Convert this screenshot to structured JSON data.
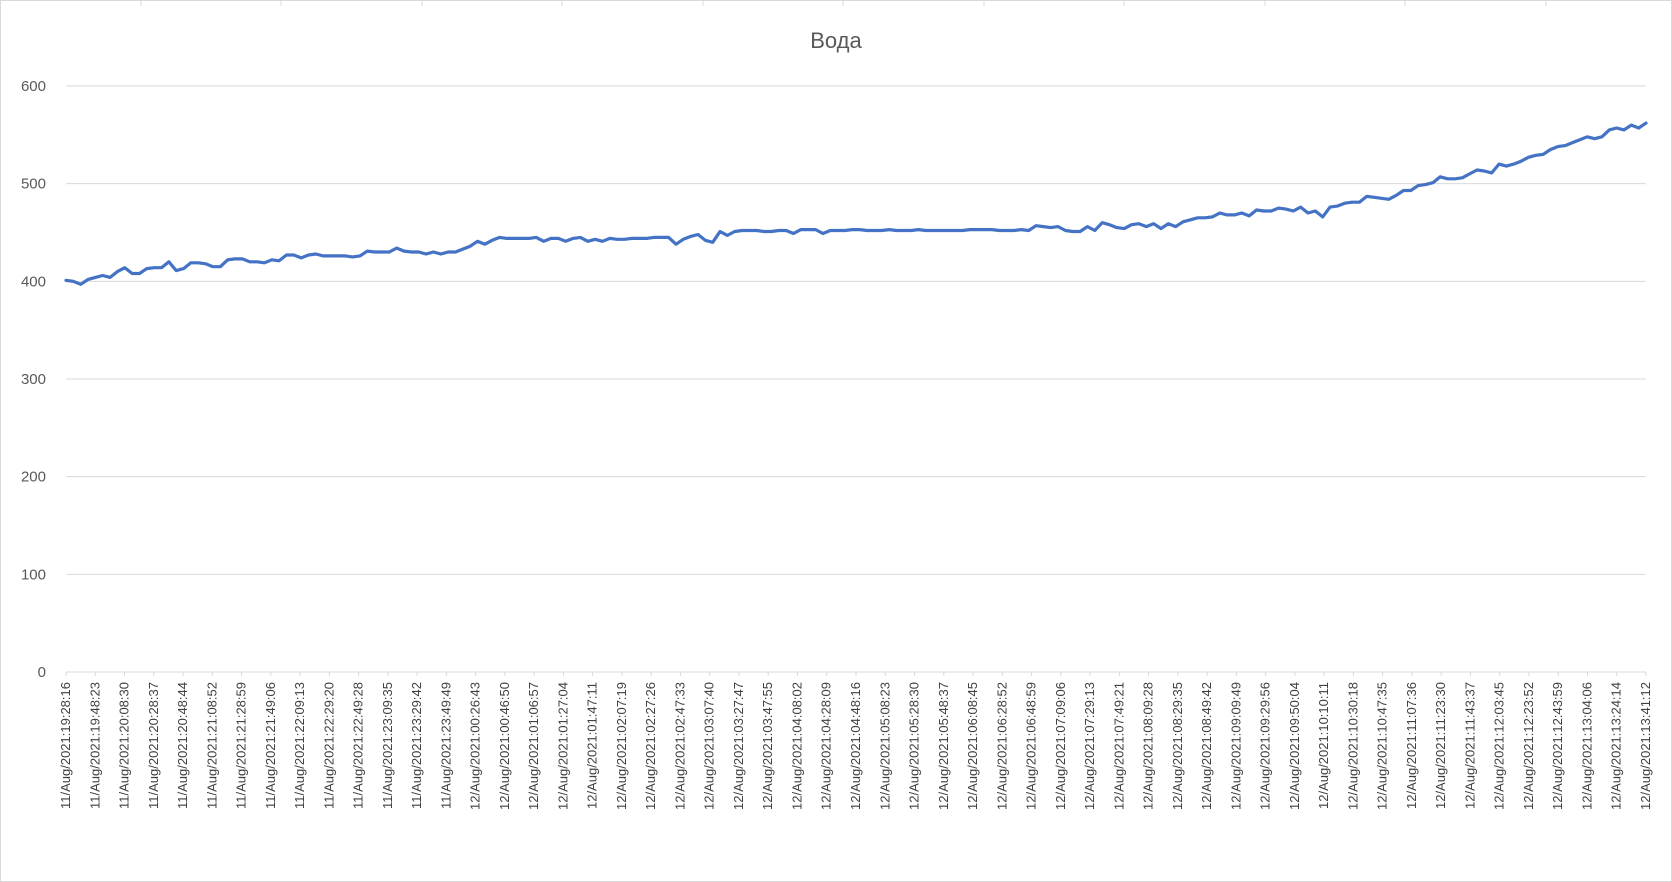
{
  "chart_data": {
    "type": "line",
    "title": "Вода",
    "xlabel": "",
    "ylabel": "",
    "ylim": [
      0,
      600
    ],
    "yticks": [
      "0",
      "100",
      "200",
      "300",
      "400",
      "500",
      "600"
    ],
    "grid": true,
    "legend": "none",
    "colors": {
      "line": "#4472C4",
      "grid": "#d9d9d9",
      "frame": "#d9d9d9",
      "text": "#595959"
    },
    "x_tick_labels": [
      "11/Aug/2021:19:28:16",
      "11/Aug/2021:19:48:23",
      "11/Aug/2021:20:08:30",
      "11/Aug/2021:20:28:37",
      "11/Aug/2021:20:48:44",
      "11/Aug/2021:21:08:52",
      "11/Aug/2021:21:28:59",
      "11/Aug/2021:21:49:06",
      "11/Aug/2021:22:09:13",
      "11/Aug/2021:22:29:20",
      "11/Aug/2021:22:49:28",
      "11/Aug/2021:23:09:35",
      "11/Aug/2021:23:29:42",
      "11/Aug/2021:23:49:49",
      "12/Aug/2021:00:26:43",
      "12/Aug/2021:00:46:50",
      "12/Aug/2021:01:06:57",
      "12/Aug/2021:01:27:04",
      "12/Aug/2021:01:47:11",
      "12/Aug/2021:02:07:19",
      "12/Aug/2021:02:27:26",
      "12/Aug/2021:02:47:33",
      "12/Aug/2021:03:07:40",
      "12/Aug/2021:03:27:47",
      "12/Aug/2021:03:47:55",
      "12/Aug/2021:04:08:02",
      "12/Aug/2021:04:28:09",
      "12/Aug/2021:04:48:16",
      "12/Aug/2021:05:08:23",
      "12/Aug/2021:05:28:30",
      "12/Aug/2021:05:48:37",
      "12/Aug/2021:06:08:45",
      "12/Aug/2021:06:28:52",
      "12/Aug/2021:06:48:59",
      "12/Aug/2021:07:09:06",
      "12/Aug/2021:07:29:13",
      "12/Aug/2021:07:49:21",
      "12/Aug/2021:08:09:28",
      "12/Aug/2021:08:29:35",
      "12/Aug/2021:08:49:42",
      "12/Aug/2021:09:09:49",
      "12/Aug/2021:09:29:56",
      "12/Aug/2021:09:50:04",
      "12/Aug/2021:10:10:11",
      "12/Aug/2021:10:30:18",
      "12/Aug/2021:10:47:35",
      "12/Aug/2021:11:07:36",
      "12/Aug/2021:11:23:30",
      "12/Aug/2021:11:43:37",
      "12/Aug/2021:12:03:45",
      "12/Aug/2021:12:23:52",
      "12/Aug/2021:12:43:59",
      "12/Aug/2021:13:04:06",
      "12/Aug/2021:13:24:14",
      "12/Aug/2021:13:41:12"
    ],
    "series": [
      {
        "values": [
          401,
          400,
          397,
          402,
          404,
          406,
          404,
          410,
          414,
          408,
          408,
          413,
          414,
          414,
          420,
          411,
          413,
          419,
          419,
          418,
          415,
          415,
          422,
          423,
          423,
          420,
          420,
          419,
          422,
          421,
          427,
          427,
          424,
          427,
          428,
          426,
          426,
          426,
          426,
          425,
          426,
          431,
          430,
          430,
          430,
          434,
          431,
          430,
          430,
          428,
          430,
          428,
          430,
          430,
          433,
          436,
          441,
          438,
          442,
          445,
          444,
          444,
          444,
          444,
          445,
          441,
          444,
          444,
          441,
          444,
          445,
          441,
          443,
          441,
          444,
          443,
          443,
          444,
          444,
          444,
          445,
          445,
          445,
          438,
          443,
          446,
          448,
          442,
          440,
          451,
          447,
          451,
          452,
          452,
          452,
          451,
          451,
          452,
          452,
          449,
          453,
          453,
          453,
          449,
          452,
          452,
          452,
          453,
          453,
          452,
          452,
          452,
          453,
          452,
          452,
          452,
          453,
          452,
          452,
          452,
          452,
          452,
          452,
          453,
          453,
          453,
          453,
          452,
          452,
          452,
          453,
          452,
          457,
          456,
          455,
          456,
          452,
          451,
          451,
          456,
          452,
          460,
          458,
          455,
          454,
          458,
          459,
          456,
          459,
          454,
          459,
          456,
          461,
          463,
          465,
          465,
          466,
          470,
          468,
          468,
          470,
          467,
          473,
          472,
          472,
          475,
          474,
          472,
          476,
          470,
          472,
          466,
          476,
          477,
          480,
          481,
          481,
          487,
          486,
          485,
          484,
          488,
          493,
          493,
          498,
          499,
          501,
          507,
          505,
          505,
          506,
          510,
          514,
          513,
          511,
          520,
          518,
          520,
          523,
          527,
          529,
          530,
          535,
          538,
          539,
          542,
          545,
          548,
          546,
          548,
          555,
          557,
          555,
          560,
          557,
          562
        ]
      }
    ]
  }
}
